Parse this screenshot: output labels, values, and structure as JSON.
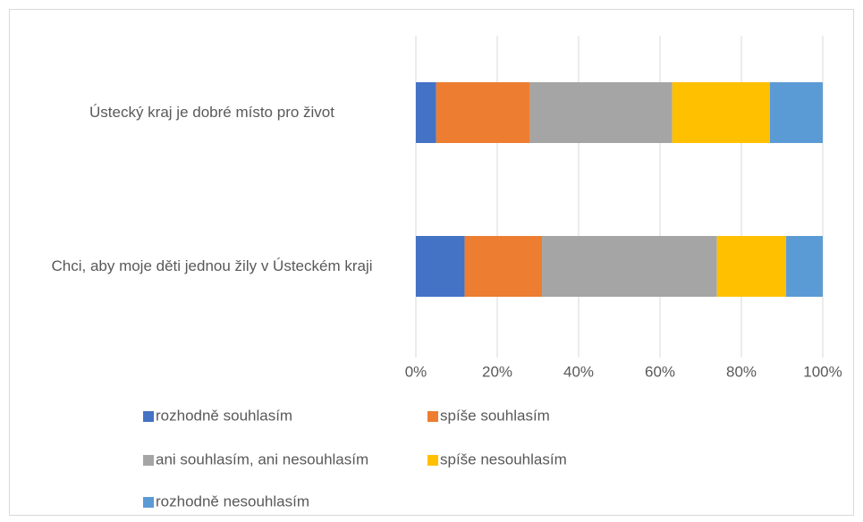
{
  "chart_data": {
    "type": "stacked_barh",
    "categories": [
      "Ústecký kraj je dobré místo pro život",
      "Chci, aby moje děti jednou žily v Ústeckém kraji"
    ],
    "series": [
      {
        "name": "rozhodně souhlasím",
        "color": "#4472c4",
        "values": [
          5,
          12
        ]
      },
      {
        "name": "spíše souhlasím",
        "color": "#ed7d31",
        "values": [
          23,
          19
        ]
      },
      {
        "name": "ani souhlasím, ani nesouhlasím",
        "color": "#a5a5a5",
        "values": [
          35,
          43
        ]
      },
      {
        "name": "spíše nesouhlasím",
        "color": "#ffc000",
        "values": [
          24,
          17
        ]
      },
      {
        "name": "rozhodně nesouhlasím",
        "color": "#5b9bd5",
        "values": [
          13,
          9
        ]
      }
    ],
    "xlim": [
      0,
      100
    ],
    "xticks": [
      {
        "value": 0,
        "label": "0%"
      },
      {
        "value": 20,
        "label": "20%"
      },
      {
        "value": 40,
        "label": "40%"
      },
      {
        "value": 60,
        "label": "60%"
      },
      {
        "value": 80,
        "label": "80%"
      },
      {
        "value": 100,
        "label": "100%"
      }
    ],
    "grid": true
  }
}
